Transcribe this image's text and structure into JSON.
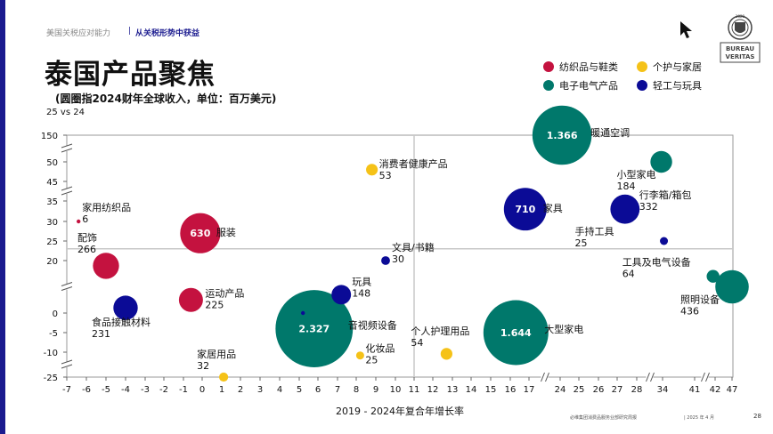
{
  "header": {
    "breadcrumb_section": "美国关税应对能力",
    "breadcrumb_separator": "|",
    "breadcrumb_current": "从关税形势中获益",
    "title": "泰国产品聚焦",
    "subtitle": "(圆圈指2024财年全球收入，单位：百万美元)",
    "comparison_note": "25 vs 24"
  },
  "footer": {
    "copyright": "必维集团消费品服务业部研究周报",
    "date": "| 2025  年 4 月",
    "page_number": "28"
  },
  "logo": {
    "text_1": "BUREAU",
    "text_2": "VERITAS",
    "year": "1828"
  },
  "icons": {
    "cursor": "arrow-cursor-icon",
    "logo": "bureau-veritas-logo"
  },
  "chart_data": {
    "type": "scatter",
    "xlabel": "2019 - 2024年复合年增长率",
    "ylabel": "",
    "x_axis_scale": "broken",
    "x_ticks": [
      "-7",
      "-6",
      "-5",
      "-4",
      "-3",
      "-2",
      "-1",
      "0",
      "1",
      "2",
      "3",
      "4",
      "5",
      "6",
      "7",
      "8",
      "9",
      "10",
      "11",
      "12",
      "13",
      "14",
      "15",
      "16",
      "17",
      "24",
      "25",
      "26",
      "27",
      "28",
      "34",
      "41",
      "42",
      "47"
    ],
    "x_breaks_after": [
      "17",
      "28",
      "41"
    ],
    "y_axis_scale": "broken",
    "y_ticks": [
      "150",
      "50",
      "45",
      "35",
      "30",
      "25",
      "20",
      "0",
      "-5",
      "-10",
      "-25"
    ],
    "y_breaks_after": [
      "150",
      "45",
      "20",
      "-10"
    ],
    "reference_lines": {
      "x": 11,
      "y": 23
    },
    "categories": {
      "textiles": {
        "name": "纺织品与鞋类",
        "color": "#c4123f"
      },
      "personal": {
        "name": "个护与家居",
        "color": "#f5c218"
      },
      "electronics": {
        "name": "电子电气产品",
        "color": "#00786b"
      },
      "light": {
        "name": "轻工与玩具",
        "color": "#0b0b96"
      }
    },
    "points": [
      {
        "label": "家用纺织品",
        "revenue": "6",
        "category": "textiles",
        "x": -6.4,
        "y": 30
      },
      {
        "label": "服装",
        "revenue": "630",
        "category": "textiles",
        "x": -0.1,
        "y": 27,
        "revenue_inside": true
      },
      {
        "label": "配饰",
        "revenue": "266",
        "category": "textiles",
        "x": -5.0,
        "y": 18
      },
      {
        "label": "运动产品",
        "revenue": "225",
        "category": "textiles",
        "x": -0.6,
        "y": 5
      },
      {
        "label": "消费者健康产品",
        "revenue": "53",
        "category": "personal",
        "x": 8.8,
        "y": 48
      },
      {
        "label": "家居用品",
        "revenue": "32",
        "category": "personal",
        "x": 1.1,
        "y": -25
      },
      {
        "label": "化妆品",
        "revenue": "25",
        "category": "personal",
        "x": 8.2,
        "y": -12
      },
      {
        "label": "个人护理用品",
        "revenue": "54",
        "category": "personal",
        "x": 12.7,
        "y": -11
      },
      {
        "label": "暖通空调",
        "revenue": "1.366",
        "category": "electronics",
        "x": 24.1,
        "y": 150,
        "revenue_inside": true
      },
      {
        "label": "小型家电",
        "revenue": "184",
        "category": "electronics",
        "x": 33.7,
        "y": 50
      },
      {
        "label": "工具及电气设备",
        "revenue": "64",
        "category": "electronics",
        "x": 41.9,
        "y": 14
      },
      {
        "label": "照明设备",
        "revenue": "436",
        "category": "electronics",
        "x": 47.0,
        "y": 10
      },
      {
        "label": "音视频设备",
        "revenue": "2.327",
        "category": "electronics",
        "x": 5.8,
        "y": -4,
        "revenue_inside": true
      },
      {
        "label": "大型家电",
        "revenue": "1.644",
        "category": "electronics",
        "x": 16.3,
        "y": -5,
        "revenue_inside": true
      },
      {
        "label": "家具",
        "revenue": "710",
        "category": "light",
        "x": 16.8,
        "y": 33,
        "revenue_inside": true
      },
      {
        "label": "行李箱/箱包",
        "revenue": "332",
        "category": "light",
        "x": 27.4,
        "y": 33
      },
      {
        "label": "手持工具",
        "revenue": "25",
        "category": "light",
        "x": 34.3,
        "y": 25
      },
      {
        "label": "文具/书籍",
        "revenue": "30",
        "category": "light",
        "x": 9.5,
        "y": 20
      },
      {
        "label": "玩具",
        "revenue": "148",
        "category": "light",
        "x": 7.2,
        "y": 7
      },
      {
        "label": "食品接触材料",
        "revenue": "231",
        "category": "light",
        "x": -4.0,
        "y": 2
      },
      {
        "label": "",
        "revenue": "",
        "category": "light",
        "x": 5.2,
        "y": 0
      }
    ]
  }
}
